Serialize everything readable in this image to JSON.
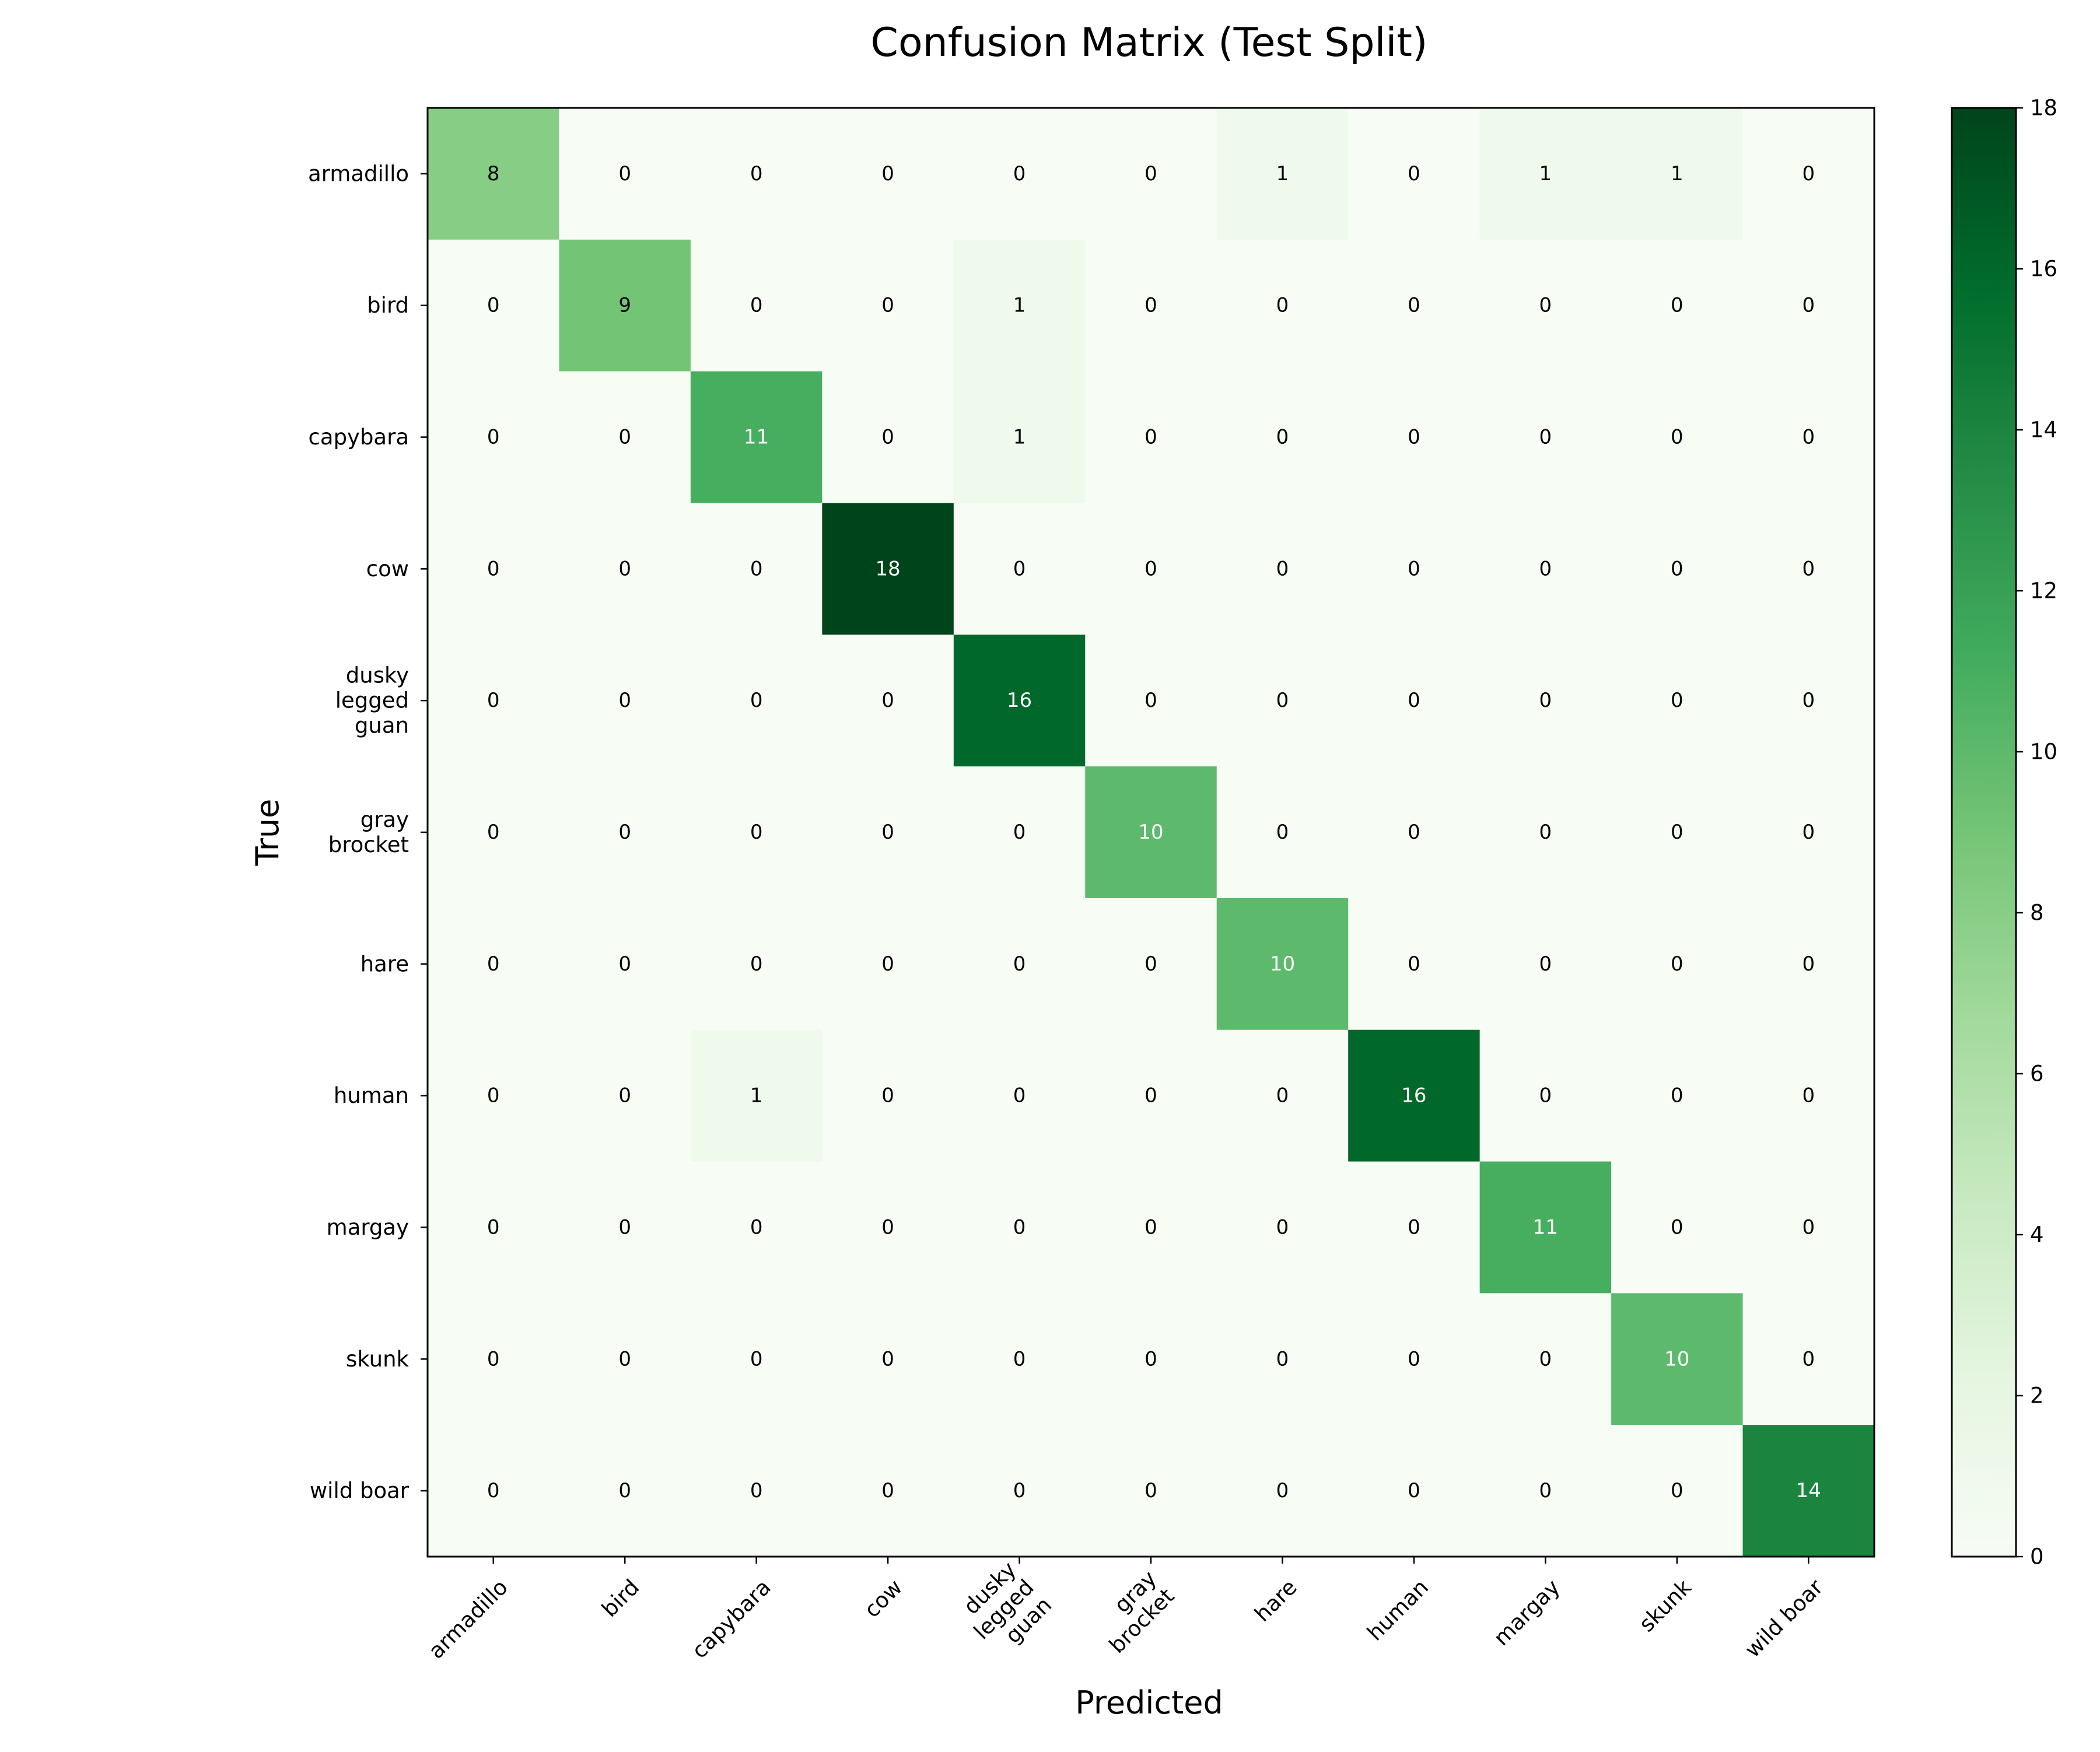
{
  "chart_data": {
    "type": "heatmap",
    "title": "Confusion Matrix (Test Split)",
    "xlabel": "Predicted",
    "ylabel": "True",
    "x_categories": [
      "armadillo",
      "bird",
      "capybara",
      "cow",
      "dusky\nlegged\nguan",
      "gray\nbrocket",
      "hare",
      "human",
      "margay",
      "skunk",
      "wild boar"
    ],
    "y_categories": [
      "armadillo",
      "bird",
      "capybara",
      "cow",
      "dusky\nlegged\nguan",
      "gray\nbrocket",
      "hare",
      "human",
      "margay",
      "skunk",
      "wild boar"
    ],
    "values": [
      [
        8,
        0,
        0,
        0,
        0,
        0,
        1,
        0,
        1,
        1,
        0
      ],
      [
        0,
        9,
        0,
        0,
        1,
        0,
        0,
        0,
        0,
        0,
        0
      ],
      [
        0,
        0,
        11,
        0,
        1,
        0,
        0,
        0,
        0,
        0,
        0
      ],
      [
        0,
        0,
        0,
        18,
        0,
        0,
        0,
        0,
        0,
        0,
        0
      ],
      [
        0,
        0,
        0,
        0,
        16,
        0,
        0,
        0,
        0,
        0,
        0
      ],
      [
        0,
        0,
        0,
        0,
        0,
        10,
        0,
        0,
        0,
        0,
        0
      ],
      [
        0,
        0,
        0,
        0,
        0,
        0,
        10,
        0,
        0,
        0,
        0
      ],
      [
        0,
        0,
        1,
        0,
        0,
        0,
        0,
        16,
        0,
        0,
        0
      ],
      [
        0,
        0,
        0,
        0,
        0,
        0,
        0,
        0,
        11,
        0,
        0
      ],
      [
        0,
        0,
        0,
        0,
        0,
        0,
        0,
        0,
        0,
        10,
        0
      ],
      [
        0,
        0,
        0,
        0,
        0,
        0,
        0,
        0,
        0,
        0,
        14
      ]
    ],
    "colormap": "Greens",
    "colorbar": {
      "min": 0,
      "max": 18,
      "ticks": [
        0,
        2,
        4,
        6,
        8,
        10,
        12,
        14,
        16,
        18
      ]
    },
    "text_color_threshold": 9,
    "text_colors": {
      "light": "#ffffff",
      "dark": "#000000"
    },
    "grid": false
  }
}
